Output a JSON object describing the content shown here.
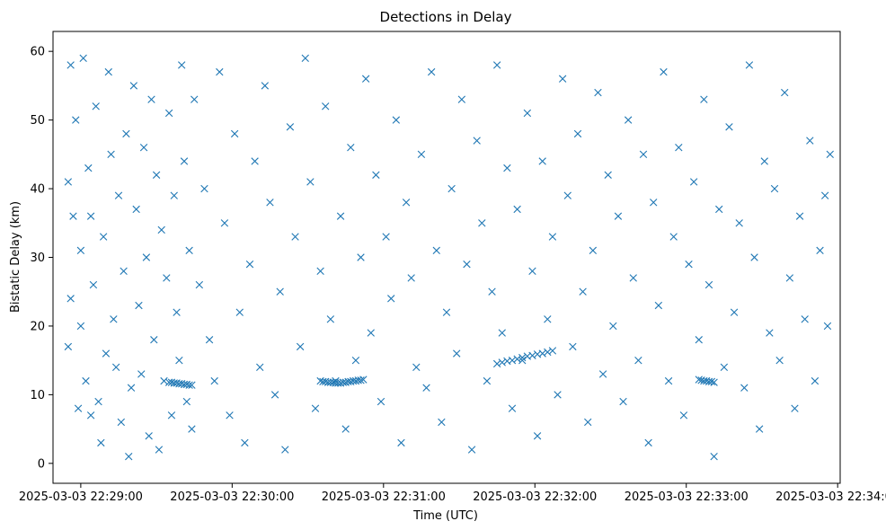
{
  "chart_data": {
    "type": "scatter",
    "title": "Detections in Delay",
    "xlabel": "Time (UTC)",
    "ylabel": "Bistatic Delay (km)",
    "marker": "x",
    "color": "#1f77b4",
    "grid": false,
    "legend": "none",
    "xlim": [
      "2025-03-03 22:28:49",
      "2025-03-03 22:34:01"
    ],
    "ylim": [
      -2.9,
      62.9
    ],
    "x_ticks": [
      "2025-03-03 22:29:00",
      "2025-03-03 22:30:00",
      "2025-03-03 22:31:00",
      "2025-03-03 22:32:00",
      "2025-03-03 22:33:00",
      "2025-03-03 22:34:00"
    ],
    "y_ticks": [
      "0",
      "10",
      "20",
      "30",
      "40",
      "50",
      "60"
    ],
    "series": [
      {
        "x_start": "2025-03-03 22:28:55",
        "x_end": "2025-03-03 22:33:57",
        "x": [
          0,
          0,
          1,
          1,
          2,
          3,
          4,
          5,
          5,
          6,
          7,
          8,
          9,
          9,
          10,
          11,
          12,
          13,
          14,
          15,
          16,
          17,
          18,
          19,
          20,
          21,
          22,
          23,
          24,
          25,
          26,
          27,
          28,
          29,
          30,
          31,
          32,
          33,
          34,
          35,
          36,
          37,
          38,
          39,
          40,
          41,
          42,
          43,
          44,
          45,
          46,
          47,
          48,
          49,
          50,
          52,
          54,
          56,
          58,
          60,
          62,
          64,
          66,
          68,
          70,
          72,
          74,
          76,
          78,
          80,
          82,
          84,
          86,
          88,
          90,
          92,
          94,
          96,
          98,
          100,
          102,
          104,
          106,
          108,
          110,
          112,
          114,
          116,
          118,
          120,
          122,
          124,
          126,
          128,
          130,
          132,
          134,
          136,
          138,
          140,
          142,
          144,
          146,
          148,
          150,
          152,
          154,
          156,
          158,
          160,
          162,
          164,
          166,
          168,
          170,
          172,
          174,
          176,
          178,
          180,
          182,
          184,
          186,
          188,
          190,
          192,
          194,
          196,
          198,
          200,
          202,
          204,
          206,
          208,
          210,
          212,
          214,
          216,
          218,
          220,
          222,
          224,
          226,
          228,
          230,
          232,
          234,
          236,
          238,
          240,
          242,
          244,
          246,
          248,
          250,
          252,
          254,
          256,
          258,
          260,
          262,
          264,
          266,
          268,
          270,
          272,
          274,
          276,
          278,
          280,
          282,
          284,
          286,
          288,
          290,
          292,
          294,
          296,
          298,
          300,
          301,
          302,
          40,
          41,
          42,
          43,
          44,
          45,
          46,
          47,
          48,
          49,
          100,
          101,
          102,
          103,
          104,
          105,
          106,
          107,
          108,
          109,
          110,
          111,
          112,
          113,
          114,
          115,
          116,
          117,
          170,
          172,
          174,
          176,
          178,
          180,
          182,
          184,
          186,
          188,
          190,
          192,
          250,
          251,
          252,
          253,
          254,
          255,
          256
        ],
        "y": [
          41,
          17,
          58,
          24,
          36,
          50,
          8,
          31,
          20,
          59,
          12,
          43,
          36,
          7,
          26,
          52,
          9,
          3,
          33,
          16,
          57,
          45,
          21,
          14,
          39,
          6,
          28,
          48,
          1,
          11,
          55,
          37,
          23,
          13,
          46,
          30,
          4,
          53,
          18,
          42,
          2,
          34,
          12,
          27,
          51,
          7,
          39,
          22,
          15,
          58,
          44,
          9,
          31,
          5,
          53,
          26,
          40,
          18,
          12,
          57,
          35,
          7,
          48,
          22,
          3,
          29,
          44,
          14,
          55,
          38,
          10,
          25,
          2,
          49,
          33,
          17,
          59,
          41,
          8,
          28,
          52,
          21,
          12,
          36,
          5,
          46,
          15,
          30,
          56,
          19,
          42,
          9,
          33,
          24,
          50,
          3,
          38,
          27,
          14,
          45,
          11,
          57,
          31,
          6,
          22,
          40,
          16,
          53,
          29,
          2,
          47,
          35,
          12,
          25,
          58,
          19,
          43,
          8,
          37,
          15,
          51,
          28,
          4,
          44,
          21,
          33,
          10,
          56,
          39,
          17,
          48,
          25,
          6,
          31,
          54,
          13,
          42,
          20,
          36,
          9,
          50,
          27,
          15,
          45,
          3,
          38,
          23,
          57,
          12,
          33,
          46,
          7,
          29,
          41,
          18,
          53,
          26,
          1,
          37,
          14,
          49,
          22,
          35,
          11,
          58,
          30,
          5,
          44,
          19,
          40,
          15,
          54,
          27,
          8,
          36,
          21,
          47,
          12,
          31,
          39,
          20,
          45,
          11.8,
          11.8,
          11.7,
          11.7,
          11.6,
          11.6,
          11.5,
          11.5,
          11.4,
          11.4,
          12.0,
          11.9,
          11.9,
          11.8,
          11.8,
          11.8,
          11.7,
          11.7,
          11.7,
          11.8,
          11.8,
          11.9,
          11.9,
          12.0,
          12.0,
          12.1,
          12.1,
          12.2,
          14.5,
          14.7,
          14.9,
          15.0,
          15.2,
          15.4,
          15.6,
          15.7,
          15.9,
          16.0,
          16.2,
          16.4,
          12.2,
          12.1,
          12.0,
          12.0,
          11.9,
          11.9,
          11.8
        ]
      }
    ]
  }
}
